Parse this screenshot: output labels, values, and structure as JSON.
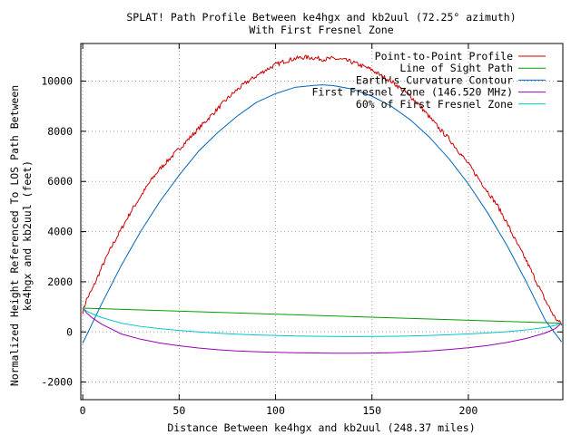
{
  "chart_data": {
    "type": "line",
    "title": "SPLAT! Path Profile Between ke4hgx and kb2uul (72.25° azimuth)",
    "subtitle": "With First Fresnel Zone",
    "xlabel": "Distance Between ke4hgx and kb2uul (248.37 miles)",
    "ylabel_line1": "Normalized Height Referenced To LOS Path Between",
    "ylabel_line2": "ke4hgx and kb2uul (feet)",
    "xlim": [
      -1,
      249
    ],
    "ylim": [
      -2700,
      11500
    ],
    "x_ticks": [
      0,
      50,
      100,
      150,
      200
    ],
    "y_ticks": [
      -2000,
      0,
      2000,
      4000,
      6000,
      8000,
      10000
    ],
    "x_tick_labels": [
      "0",
      "50",
      "100",
      "150",
      "200"
    ],
    "y_tick_labels": [
      "-2000",
      "0",
      "2000",
      "4000",
      "6000",
      "8000",
      "10000"
    ],
    "grid": true,
    "legend_position": "top-right",
    "series": [
      {
        "name": "Point-to-Point Profile",
        "color": "#cc0000",
        "x": [
          0,
          2,
          5,
          10,
          15,
          20,
          25,
          30,
          35,
          40,
          45,
          50,
          55,
          60,
          65,
          70,
          75,
          80,
          85,
          90,
          95,
          100,
          105,
          110,
          115,
          120,
          125,
          130,
          135,
          140,
          145,
          150,
          155,
          160,
          165,
          170,
          175,
          180,
          185,
          190,
          195,
          200,
          205,
          210,
          215,
          220,
          225,
          230,
          235,
          240,
          245,
          248.37
        ],
        "y": [
          800,
          1300,
          1700,
          2600,
          3400,
          4100,
          4800,
          5400,
          6000,
          6500,
          6900,
          7300,
          7700,
          8100,
          8500,
          8900,
          9300,
          9650,
          9950,
          10200,
          10450,
          10650,
          10800,
          10900,
          10950,
          10930,
          10870,
          10900,
          10850,
          10750,
          10600,
          10450,
          10200,
          10000,
          9700,
          9400,
          9000,
          8550,
          8100,
          7700,
          7200,
          6700,
          6150,
          5600,
          5050,
          4350,
          3550,
          2850,
          2050,
          1250,
          550,
          300
        ]
      },
      {
        "name": "Line of Sight Path",
        "color": "#00a000",
        "x": [
          0,
          248.37
        ],
        "y": [
          950,
          350
        ]
      },
      {
        "name": "Earth's Curvature Contour",
        "color": "#0066bb",
        "x": [
          0,
          10,
          20,
          30,
          40,
          50,
          60,
          70,
          80,
          90,
          100,
          110,
          120,
          124.2,
          130,
          140,
          150,
          160,
          170,
          180,
          190,
          200,
          210,
          220,
          230,
          240,
          248.37
        ],
        "y": [
          -450,
          1150,
          2650,
          4000,
          5200,
          6250,
          7200,
          7950,
          8600,
          9150,
          9500,
          9750,
          9830,
          9850,
          9820,
          9680,
          9400,
          9000,
          8450,
          7750,
          6900,
          5900,
          4750,
          3450,
          2000,
          450,
          -400
        ]
      },
      {
        "name": "First Fresnel Zone (146.520 MHz)",
        "color": "#9900bb",
        "x": [
          0,
          2,
          5,
          10,
          20,
          30,
          40,
          50,
          60,
          70,
          80,
          90,
          100,
          110,
          120,
          130,
          140,
          150,
          160,
          170,
          180,
          190,
          200,
          210,
          220,
          230,
          240,
          245,
          248.37
        ],
        "y": [
          950,
          760,
          560,
          300,
          -80,
          -290,
          -440,
          -550,
          -640,
          -710,
          -760,
          -790,
          -810,
          -830,
          -840,
          -850,
          -850,
          -845,
          -830,
          -800,
          -760,
          -700,
          -630,
          -540,
          -420,
          -260,
          -40,
          130,
          350
        ]
      },
      {
        "name": "60% of First Fresnel Zone",
        "color": "#00c8c8",
        "x": [
          0,
          2,
          5,
          10,
          20,
          30,
          40,
          50,
          60,
          70,
          80,
          90,
          100,
          110,
          120,
          130,
          140,
          150,
          160,
          170,
          180,
          190,
          200,
          210,
          220,
          230,
          240,
          245,
          248.37
        ],
        "y": [
          950,
          830,
          720,
          570,
          350,
          220,
          130,
          60,
          0,
          -50,
          -90,
          -120,
          -140,
          -160,
          -170,
          -180,
          -185,
          -180,
          -175,
          -160,
          -140,
          -110,
          -80,
          -40,
          10,
          80,
          180,
          260,
          350
        ]
      }
    ]
  }
}
